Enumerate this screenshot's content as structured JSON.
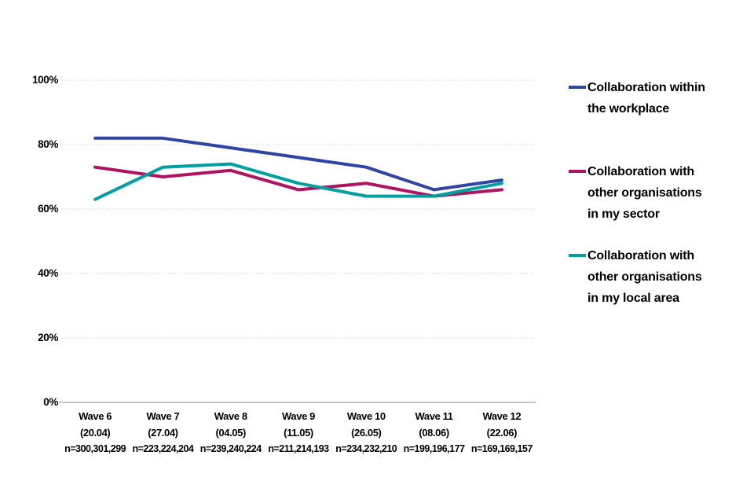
{
  "chart_data": {
    "type": "line",
    "title": "",
    "xlabel": "",
    "ylabel": "",
    "ylim": [
      0,
      100
    ],
    "grid": "horizontal dotted",
    "legend_position": "right",
    "y_ticks": [
      {
        "label": "0%",
        "value": 0
      },
      {
        "label": "20%",
        "value": 20
      },
      {
        "label": "40%",
        "value": 40
      },
      {
        "label": "60%",
        "value": 60
      },
      {
        "label": "80%",
        "value": 80
      },
      {
        "label": "100%",
        "value": 100
      }
    ],
    "categories": [
      {
        "wave": "Wave 6",
        "date": "(20.04)",
        "n": "n=300,301,299"
      },
      {
        "wave": "Wave 7",
        "date": "(27.04)",
        "n": "n=223,224,204"
      },
      {
        "wave": "Wave 8",
        "date": "(04.05)",
        "n": "n=239,240,224"
      },
      {
        "wave": "Wave 9",
        "date": "(11.05)",
        "n": "n=211,214,193"
      },
      {
        "wave": "Wave 10",
        "date": "(26.05)",
        "n": "n=234,232,210"
      },
      {
        "wave": "Wave 11",
        "date": "(08.06)",
        "n": "n=199,196,177"
      },
      {
        "wave": "Wave 12",
        "date": "(22.06)",
        "n": "n=169,169,157"
      }
    ],
    "series": [
      {
        "name": "Collaboration within the workplace",
        "color": "#2e45a3",
        "values": [
          82,
          82,
          79,
          76,
          73,
          66,
          69
        ]
      },
      {
        "name": "Collaboration with other organisations in my sector",
        "color": "#b0135f",
        "values": [
          73,
          70,
          72,
          66,
          68,
          64,
          66
        ]
      },
      {
        "name": "Collaboration with other organisations in my local area",
        "color": "#00a0a0",
        "values": [
          63,
          73,
          74,
          68,
          64,
          64,
          68
        ]
      }
    ]
  },
  "legend": {
    "items": [
      {
        "label": "Collaboration within\nthe workplace",
        "color": "#2e45a3"
      },
      {
        "label": "Collaboration with\nother organisations\nin my sector",
        "color": "#b0135f"
      },
      {
        "label": "Collaboration with\nother organisations\nin my local area",
        "color": "#00a0a0"
      }
    ]
  },
  "colors": {
    "gridline": "#d9d9d9",
    "axis_line": "#c6c6c6",
    "text": "#000000",
    "background": "#ffffff"
  }
}
